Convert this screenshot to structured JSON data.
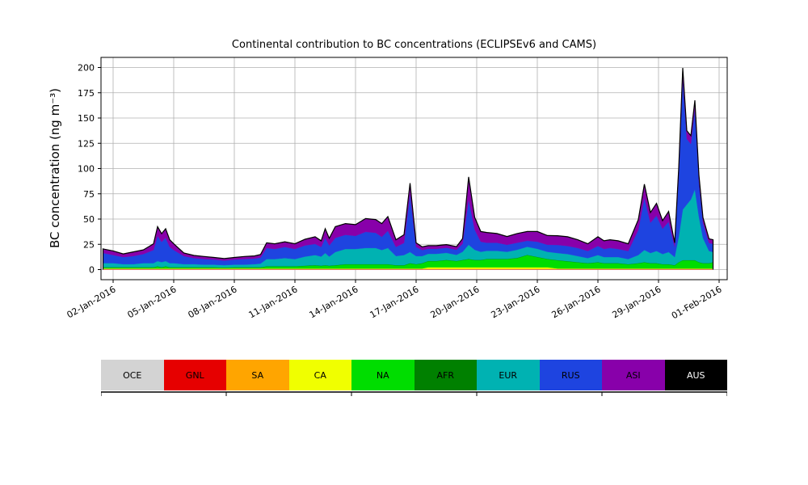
{
  "chart_data": {
    "type": "area",
    "stacked": true,
    "title": "Continental contribution to BC concentrations (ECLIPSEv6 and CAMS)",
    "xlabel": "",
    "ylabel": "BC concentration (ng m⁻³)",
    "x_unit": "day of January 2016 (32 = 01-Feb-2016)",
    "xlim": [
      1.4,
      32.4
    ],
    "ylim": [
      -10,
      210
    ],
    "yticks": [
      0,
      25,
      50,
      75,
      100,
      125,
      150,
      175,
      200
    ],
    "xticks": {
      "days": [
        2,
        5,
        8,
        11,
        14,
        17,
        20,
        23,
        26,
        29,
        32
      ],
      "labels": [
        "02-Jan-2016",
        "05-Jan-2016",
        "08-Jan-2016",
        "11-Jan-2016",
        "14-Jan-2016",
        "17-Jan-2016",
        "20-Jan-2016",
        "23-Jan-2016",
        "26-Jan-2016",
        "29-Jan-2016",
        "01-Feb-2016"
      ]
    },
    "grid": true,
    "legend_position": "below",
    "x": [
      1.5,
      2,
      2.5,
      3,
      3.5,
      4,
      4.2,
      4.4,
      4.6,
      4.8,
      5,
      5.5,
      6,
      6.5,
      7,
      7.5,
      8,
      8.5,
      9,
      9.3,
      9.6,
      10,
      10.5,
      11,
      11.5,
      12,
      12.3,
      12.5,
      12.7,
      13,
      13.5,
      14,
      14.5,
      15,
      15.3,
      15.6,
      16,
      16.4,
      16.7,
      17,
      17.3,
      17.6,
      18,
      18.5,
      19,
      19.3,
      19.6,
      19.9,
      20.2,
      20.5,
      21,
      21.5,
      22,
      22.5,
      23,
      23.5,
      24,
      24.5,
      25,
      25.5,
      26,
      26.3,
      26.6,
      27,
      27.5,
      28,
      28.3,
      28.6,
      28.9,
      29.2,
      29.5,
      29.8,
      30,
      30.2,
      30.4,
      30.6,
      30.8,
      31,
      31.2,
      31.5,
      31.7
    ],
    "series": [
      {
        "name": "OCE",
        "color": "#d3d3d3",
        "values": 0.2
      },
      {
        "name": "GNL",
        "color": "#e60000",
        "values": 0.3
      },
      {
        "name": "SA",
        "color": "#ffa500",
        "values": 0.3
      },
      {
        "name": "CA",
        "color": "#f0ff00",
        "values": [
          0.3,
          0.3,
          0.3,
          0.3,
          0.3,
          0.3,
          0.3,
          0.3,
          0.3,
          0.3,
          0.3,
          0.3,
          0.3,
          0.3,
          0.3,
          0.3,
          0.3,
          0.3,
          0.3,
          0.3,
          0.3,
          0.3,
          0.3,
          0.3,
          0.3,
          0.3,
          0.3,
          0.3,
          0.3,
          0.3,
          0.3,
          0.3,
          0.3,
          0.3,
          0.3,
          0.3,
          0.3,
          0.3,
          0.3,
          0.3,
          0.3,
          1.5,
          1.5,
          1.5,
          1.5,
          1.5,
          1.5,
          1.5,
          1.5,
          1.5,
          1.5,
          1.5,
          1.5,
          1.5,
          1.5,
          1.5,
          0.3,
          0.3,
          0.3,
          0.3,
          0.3,
          0.3,
          0.3,
          0.3,
          0.3,
          0.3,
          0.3,
          0.3,
          0.3,
          0.3,
          0.3,
          0.3,
          0.3,
          0.3,
          0.3,
          0.3,
          0.3,
          0.3,
          0.3,
          0.3,
          0.3
        ]
      },
      {
        "name": "NA",
        "color": "#00dd00",
        "values": [
          1,
          1,
          1,
          1,
          1,
          1,
          2,
          1,
          2,
          1,
          1,
          1,
          1,
          1,
          1,
          0.8,
          1,
          1,
          1,
          1,
          2,
          2,
          2,
          2,
          2.5,
          3,
          2.5,
          3,
          2.5,
          3,
          4,
          4,
          4,
          4,
          4,
          4,
          3,
          3,
          5,
          4,
          5,
          6,
          6,
          7,
          6,
          7,
          8,
          7,
          7,
          8,
          8,
          8,
          9,
          12,
          10,
          8,
          8,
          7,
          6,
          5,
          6,
          5,
          5,
          5,
          4,
          5,
          6,
          5,
          5,
          4,
          4,
          3,
          6,
          8,
          8,
          8,
          8,
          6,
          5,
          5,
          6
        ]
      },
      {
        "name": "AFR",
        "color": "#008000",
        "values": 0.3
      },
      {
        "name": "EUR",
        "color": "#00b2b2",
        "values": [
          4,
          4,
          3,
          3,
          4,
          4,
          5,
          5,
          5,
          4,
          4,
          3,
          3,
          2.5,
          2.5,
          2.2,
          2.5,
          2.5,
          3,
          3.5,
          7,
          7,
          8,
          7,
          9,
          10,
          9,
          12,
          9,
          13,
          15,
          15,
          16,
          16,
          14,
          16,
          9,
          10,
          11,
          8,
          7,
          7,
          7,
          7,
          6,
          8,
          14,
          10,
          8,
          8,
          8,
          7,
          8,
          8,
          8,
          7,
          7,
          7,
          6,
          5,
          7,
          6,
          6,
          6,
          5,
          8,
          12,
          10,
          12,
          10,
          12,
          8,
          25,
          50,
          55,
          60,
          70,
          45,
          25,
          12,
          10
        ]
      },
      {
        "name": "RUS",
        "color": "#1e44e0",
        "values": [
          10,
          8,
          7,
          8,
          9,
          13,
          25,
          20,
          23,
          16,
          13,
          8,
          6,
          5.5,
          5,
          4.5,
          5,
          5.5,
          5.5,
          6,
          11,
          10,
          11,
          10,
          11,
          11,
          9.5,
          15,
          11,
          14,
          14,
          13,
          16,
          15,
          13,
          17,
          9,
          12,
          58,
          9,
          6,
          5,
          5,
          5,
          5,
          8,
          45,
          20,
          10,
          8,
          8,
          7,
          7,
          6,
          7,
          7,
          8,
          8,
          8,
          7,
          9,
          8,
          9,
          8,
          8,
          25,
          52,
          30,
          35,
          25,
          30,
          10,
          60,
          130,
          65,
          55,
          80,
          35,
          15,
          8,
          8
        ]
      },
      {
        "name": "ASI",
        "color": "#8800aa",
        "values": [
          4,
          4,
          3,
          4,
          4,
          6,
          9,
          8,
          9,
          7,
          6,
          3,
          2.5,
          2.5,
          2,
          2,
          2,
          2.5,
          2.5,
          3,
          5,
          5,
          5,
          5,
          6,
          7,
          6,
          9,
          7,
          11,
          11,
          11,
          13,
          13,
          13,
          14,
          7,
          8,
          10,
          4,
          3,
          3,
          3,
          3,
          3,
          5,
          22,
          12,
          10,
          10,
          9,
          8,
          9,
          9,
          10,
          9,
          9,
          9,
          8,
          7,
          9,
          8,
          8,
          8,
          7,
          10,
          13,
          10,
          12,
          8,
          10,
          4,
          8,
          10,
          8,
          8,
          8,
          6,
          5,
          4,
          4
        ]
      },
      {
        "name": "AUS",
        "color": "#000000",
        "values": 0.1
      }
    ]
  }
}
